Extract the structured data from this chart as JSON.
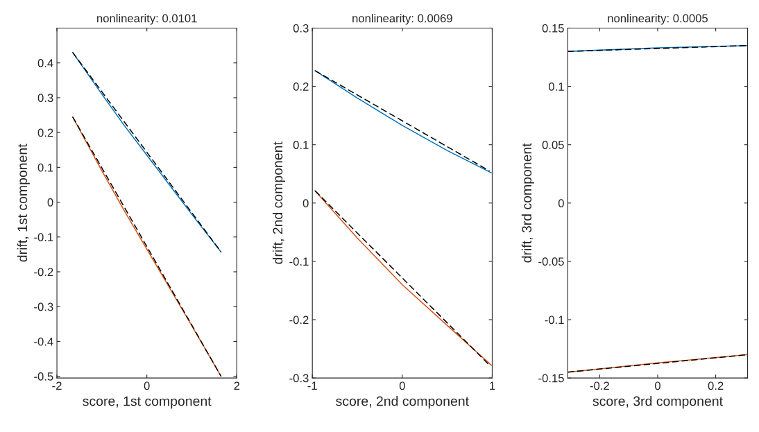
{
  "chart_data": [
    {
      "type": "line",
      "title": "nonlinearity: 0.0101",
      "xlabel": "score, 1st component",
      "ylabel": "drift, 1st component",
      "xlim": [
        -2,
        2
      ],
      "ylim": [
        -0.505,
        0.5
      ],
      "xticks": [
        -2,
        0,
        2
      ],
      "yticks": [
        -0.5,
        -0.4,
        -0.3,
        -0.2,
        -0.1,
        0,
        0.1,
        0.2,
        0.3,
        0.4
      ],
      "grid": false,
      "series": [
        {
          "color": "#0072bd",
          "x": [
            -1.65,
            -1,
            -0.5,
            0,
            0.5,
            1,
            1.65
          ],
          "values": [
            0.43,
            0.31,
            0.22,
            0.135,
            0.05,
            -0.035,
            -0.143
          ]
        },
        {
          "color": "#000000",
          "line_style": "dashed",
          "x": [
            -1.65,
            1.65
          ],
          "values": [
            0.43,
            -0.143
          ]
        },
        {
          "color": "#d95319",
          "x": [
            -1.65,
            -1,
            -0.5,
            0,
            0.5,
            1,
            1.65
          ],
          "values": [
            0.245,
            0.09,
            -0.025,
            -0.135,
            -0.245,
            -0.355,
            -0.5
          ]
        },
        {
          "color": "#000000",
          "line_style": "dashed",
          "x": [
            -1.65,
            1.65
          ],
          "values": [
            0.245,
            -0.5
          ]
        }
      ]
    },
    {
      "type": "line",
      "title": "nonlinearity: 0.0069",
      "xlabel": "score, 2nd component",
      "ylabel": "drift, 2nd component",
      "xlim": [
        -1,
        1
      ],
      "ylim": [
        -0.3,
        0.3
      ],
      "xticks": [
        -1,
        0,
        1
      ],
      "yticks": [
        -0.3,
        -0.2,
        -0.1,
        0,
        0.1,
        0.2,
        0.3
      ],
      "grid": false,
      "series": [
        {
          "color": "#0072bd",
          "x": [
            -0.97,
            -0.5,
            0,
            0.5,
            0.99
          ],
          "values": [
            0.227,
            0.18,
            0.133,
            0.09,
            0.052
          ]
        },
        {
          "color": "#000000",
          "line_style": "dashed",
          "x": [
            -0.97,
            0.97
          ],
          "values": [
            0.227,
            0.055
          ]
        },
        {
          "color": "#d95319",
          "x": [
            -0.97,
            -0.5,
            0,
            0.5,
            0.99
          ],
          "values": [
            0.021,
            -0.06,
            -0.14,
            -0.21,
            -0.278
          ]
        },
        {
          "color": "#000000",
          "line_style": "dashed",
          "x": [
            -0.97,
            0.97
          ],
          "values": [
            0.021,
            -0.278
          ]
        }
      ]
    },
    {
      "type": "line",
      "title": "nonlinearity: 0.0005",
      "xlabel": "score, 3rd component",
      "ylabel": "drift, 3rd component",
      "xlim": [
        -0.31,
        0.31
      ],
      "ylim": [
        -0.15,
        0.15
      ],
      "xticks": [
        -0.2,
        0,
        0.2
      ],
      "yticks": [
        -0.15,
        -0.1,
        -0.05,
        0,
        0.05,
        0.1,
        0.15
      ],
      "grid": false,
      "series": [
        {
          "color": "#0072bd",
          "x": [
            -0.31,
            0,
            0.31
          ],
          "values": [
            0.13,
            0.133,
            0.135
          ]
        },
        {
          "color": "#000000",
          "line_style": "dashed",
          "x": [
            -0.31,
            0.31
          ],
          "values": [
            0.13,
            0.135
          ]
        },
        {
          "color": "#d95319",
          "x": [
            -0.31,
            0,
            0.31
          ],
          "values": [
            -0.145,
            -0.137,
            -0.13
          ]
        },
        {
          "color": "#000000",
          "line_style": "dashed",
          "x": [
            -0.31,
            0.31
          ],
          "values": [
            -0.145,
            -0.13
          ]
        }
      ]
    }
  ]
}
